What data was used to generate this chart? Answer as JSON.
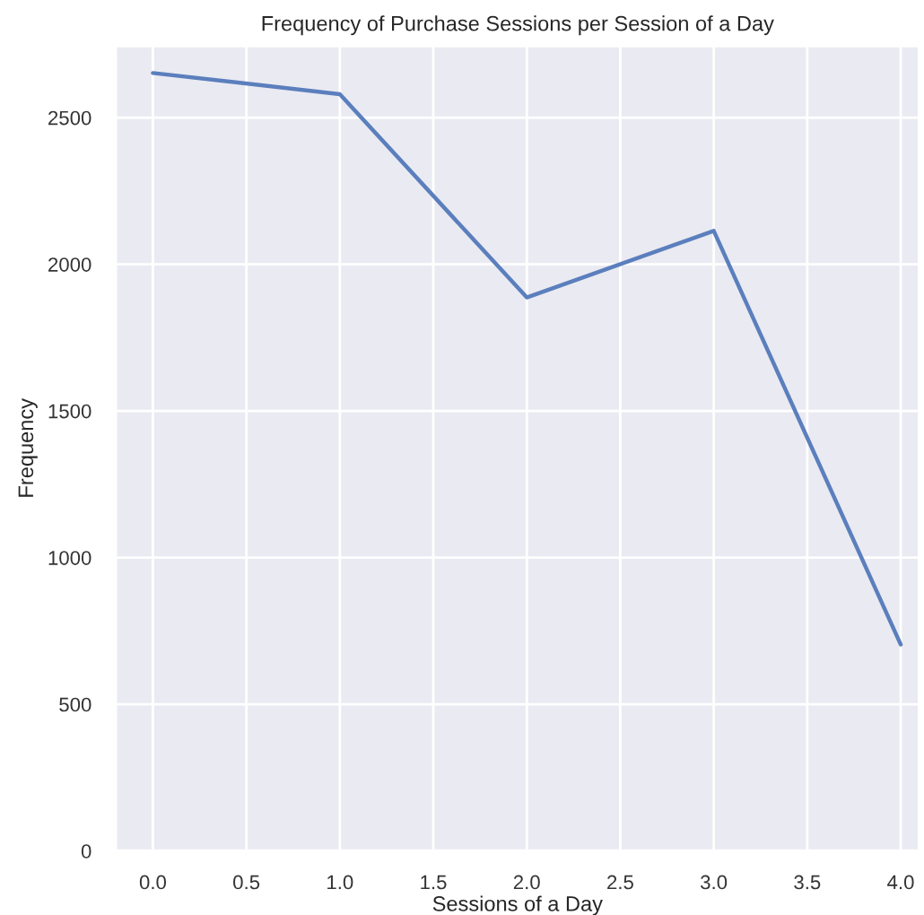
{
  "chart_data": {
    "type": "line",
    "title": "Frequency of Purchase Sessions per Session of a Day",
    "xlabel": "Sessions of a Day",
    "ylabel": "Frequency",
    "x": [
      0,
      1,
      2,
      3,
      4
    ],
    "series": [
      {
        "color": "#5b7fbd",
        "values": [
          2652,
          2580,
          1887,
          2114,
          704
        ]
      }
    ],
    "xlim": [
      -0.2,
      4.1
    ],
    "ylim": [
      0,
      2745
    ],
    "xticks": [
      {
        "value": 0,
        "label": "0.0"
      },
      {
        "value": 0.5,
        "label": "0.5"
      },
      {
        "value": 1,
        "label": "1.0"
      },
      {
        "value": 1.5,
        "label": "1.5"
      },
      {
        "value": 2,
        "label": "2.0"
      },
      {
        "value": 2.5,
        "label": "2.5"
      },
      {
        "value": 3,
        "label": "3.0"
      },
      {
        "value": 3.5,
        "label": "3.5"
      },
      {
        "value": 4,
        "label": "4.0"
      }
    ],
    "yticks": [
      0,
      500,
      1000,
      1500,
      2000,
      2500
    ],
    "grid": true,
    "legend": false
  }
}
